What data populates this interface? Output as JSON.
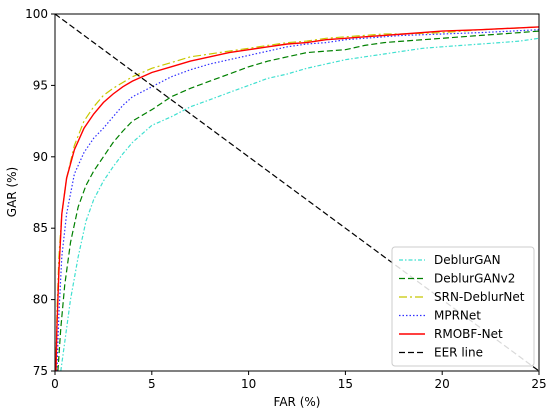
{
  "chart_data": {
    "type": "line",
    "xlabel": "FAR (%)",
    "ylabel": "GAR (%)",
    "xlim": [
      0,
      25
    ],
    "ylim": [
      75,
      100
    ],
    "xticks": [
      0,
      5,
      10,
      15,
      20,
      25
    ],
    "yticks": [
      75,
      80,
      85,
      90,
      95,
      100
    ],
    "xtick_labels": [
      "0",
      "5",
      "10",
      "15",
      "20",
      "25"
    ],
    "ytick_labels": [
      "75",
      "80",
      "85",
      "90",
      "95",
      "100"
    ],
    "grid": false,
    "legend_position": "lower-right",
    "series": [
      {
        "name": "DeblurGAN",
        "color": "#40e0d0",
        "style": "dashdot-dense",
        "points": [
          [
            0.3,
            75
          ],
          [
            0.5,
            77
          ],
          [
            0.8,
            80
          ],
          [
            1.2,
            83
          ],
          [
            1.6,
            85.5
          ],
          [
            2,
            87
          ],
          [
            2.5,
            88.3
          ],
          [
            3,
            89.3
          ],
          [
            3.5,
            90.2
          ],
          [
            4,
            91
          ],
          [
            5,
            92.2
          ],
          [
            6,
            92.8
          ],
          [
            7,
            93.5
          ],
          [
            8,
            94
          ],
          [
            9,
            94.5
          ],
          [
            10,
            95
          ],
          [
            11,
            95.5
          ],
          [
            12,
            95.8
          ],
          [
            13,
            96.2
          ],
          [
            14,
            96.5
          ],
          [
            15,
            96.8
          ],
          [
            16,
            97
          ],
          [
            17,
            97.2
          ],
          [
            18,
            97.4
          ],
          [
            19,
            97.6
          ],
          [
            20,
            97.7
          ],
          [
            21,
            97.8
          ],
          [
            22,
            97.9
          ],
          [
            23,
            98
          ],
          [
            24,
            98.1
          ],
          [
            25,
            98.3
          ]
        ]
      },
      {
        "name": "DeblurGANv2",
        "color": "#008000",
        "style": "dashed",
        "points": [
          [
            0.15,
            75
          ],
          [
            0.3,
            78
          ],
          [
            0.5,
            81
          ],
          [
            0.8,
            84
          ],
          [
            1.2,
            86.5
          ],
          [
            1.6,
            88
          ],
          [
            2,
            89
          ],
          [
            2.5,
            90
          ],
          [
            3,
            91
          ],
          [
            3.5,
            91.8
          ],
          [
            4,
            92.5
          ],
          [
            5,
            93.3
          ],
          [
            6,
            94.2
          ],
          [
            7,
            94.8
          ],
          [
            8,
            95.3
          ],
          [
            9,
            95.8
          ],
          [
            10,
            96.3
          ],
          [
            11,
            96.7
          ],
          [
            12,
            97
          ],
          [
            13,
            97.3
          ],
          [
            14,
            97.4
          ],
          [
            15,
            97.5
          ],
          [
            16,
            97.8
          ],
          [
            17,
            98
          ],
          [
            18,
            98.1
          ],
          [
            19,
            98.2
          ],
          [
            20,
            98.3
          ],
          [
            21,
            98.4
          ],
          [
            22,
            98.5
          ],
          [
            23,
            98.6
          ],
          [
            24,
            98.7
          ],
          [
            25,
            98.8
          ]
        ]
      },
      {
        "name": "SRN-DeblurNet",
        "color": "#c8c800",
        "style": "dashdot",
        "points": [
          [
            0.05,
            75
          ],
          [
            0.1,
            79
          ],
          [
            0.2,
            83
          ],
          [
            0.35,
            86
          ],
          [
            0.6,
            88.5
          ],
          [
            1,
            90.8
          ],
          [
            1.5,
            92.5
          ],
          [
            2,
            93.5
          ],
          [
            2.5,
            94.3
          ],
          [
            3,
            94.8
          ],
          [
            3.5,
            95.2
          ],
          [
            4,
            95.6
          ],
          [
            5,
            96.2
          ],
          [
            6,
            96.6
          ],
          [
            7,
            97
          ],
          [
            8,
            97.2
          ],
          [
            9,
            97.4
          ],
          [
            10,
            97.6
          ],
          [
            11,
            97.8
          ],
          [
            12,
            98
          ],
          [
            13,
            98.1
          ],
          [
            14,
            98.3
          ],
          [
            15,
            98.4
          ],
          [
            16,
            98.5
          ],
          [
            17,
            98.6
          ],
          [
            18,
            98.6
          ],
          [
            20,
            98.7
          ],
          [
            22,
            98.9
          ],
          [
            25,
            99.1
          ]
        ]
      },
      {
        "name": "MPRNet",
        "color": "#3030ff",
        "style": "dotted",
        "points": [
          [
            0.1,
            75
          ],
          [
            0.2,
            79
          ],
          [
            0.35,
            83
          ],
          [
            0.6,
            86
          ],
          [
            1,
            88.8
          ],
          [
            1.5,
            90.3
          ],
          [
            2,
            91.3
          ],
          [
            2.5,
            92
          ],
          [
            3,
            92.8
          ],
          [
            3.5,
            93.6
          ],
          [
            4,
            94.2
          ],
          [
            5,
            94.9
          ],
          [
            6,
            95.6
          ],
          [
            7,
            96.1
          ],
          [
            8,
            96.5
          ],
          [
            9,
            96.8
          ],
          [
            10,
            97.1
          ],
          [
            11,
            97.4
          ],
          [
            12,
            97.7
          ],
          [
            13,
            97.9
          ],
          [
            14,
            98
          ],
          [
            15,
            98.2
          ],
          [
            16,
            98.3
          ],
          [
            17,
            98.4
          ],
          [
            18,
            98.5
          ],
          [
            20,
            98.6
          ],
          [
            22,
            98.7
          ],
          [
            25,
            98.9
          ]
        ]
      },
      {
        "name": "RMOBF-Net",
        "color": "#ff0000",
        "style": "solid",
        "points": [
          [
            0.05,
            75
          ],
          [
            0.1,
            78
          ],
          [
            0.2,
            82
          ],
          [
            0.35,
            86
          ],
          [
            0.6,
            88.5
          ],
          [
            1,
            90.5
          ],
          [
            1.5,
            92
          ],
          [
            2,
            93
          ],
          [
            2.5,
            93.8
          ],
          [
            3,
            94.4
          ],
          [
            3.5,
            94.9
          ],
          [
            4,
            95.3
          ],
          [
            5,
            95.9
          ],
          [
            6,
            96.3
          ],
          [
            7,
            96.7
          ],
          [
            8,
            97
          ],
          [
            9,
            97.3
          ],
          [
            10,
            97.5
          ],
          [
            11,
            97.7
          ],
          [
            12,
            97.9
          ],
          [
            13,
            98
          ],
          [
            14,
            98.2
          ],
          [
            15,
            98.3
          ],
          [
            16,
            98.4
          ],
          [
            17,
            98.5
          ],
          [
            18,
            98.6
          ],
          [
            20,
            98.8
          ],
          [
            22,
            98.9
          ],
          [
            25,
            99.1
          ]
        ]
      },
      {
        "name": "EER line",
        "color": "#000000",
        "style": "dashed",
        "points": [
          [
            0,
            100
          ],
          [
            25,
            75
          ]
        ]
      }
    ]
  }
}
